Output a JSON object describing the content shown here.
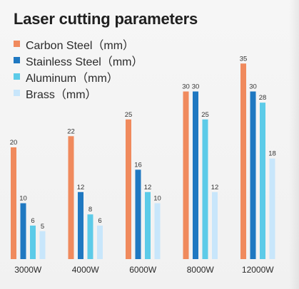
{
  "chart_data": {
    "type": "bar",
    "title": "Laser cutting parameters",
    "categories": [
      "3000W",
      "4000W",
      "6000W",
      "8000W",
      "12000W"
    ],
    "series": [
      {
        "name": "Carbon Steel（mm）",
        "color": "#f08a5d",
        "values": [
          20,
          22,
          25,
          30,
          35
        ]
      },
      {
        "name": "Stainless Steel（mm）",
        "color": "#1f78c1",
        "values": [
          10,
          12,
          16,
          30,
          30
        ]
      },
      {
        "name": "Aluminum（mm）",
        "color": "#5ccbe8",
        "values": [
          6,
          8,
          12,
          25,
          28
        ]
      },
      {
        "name": "Brass（mm）",
        "color": "#c8e6fb",
        "values": [
          5,
          6,
          10,
          12,
          18
        ]
      }
    ],
    "ylim": [
      0,
      40
    ],
    "grid": false,
    "legend_position": "top-left"
  }
}
